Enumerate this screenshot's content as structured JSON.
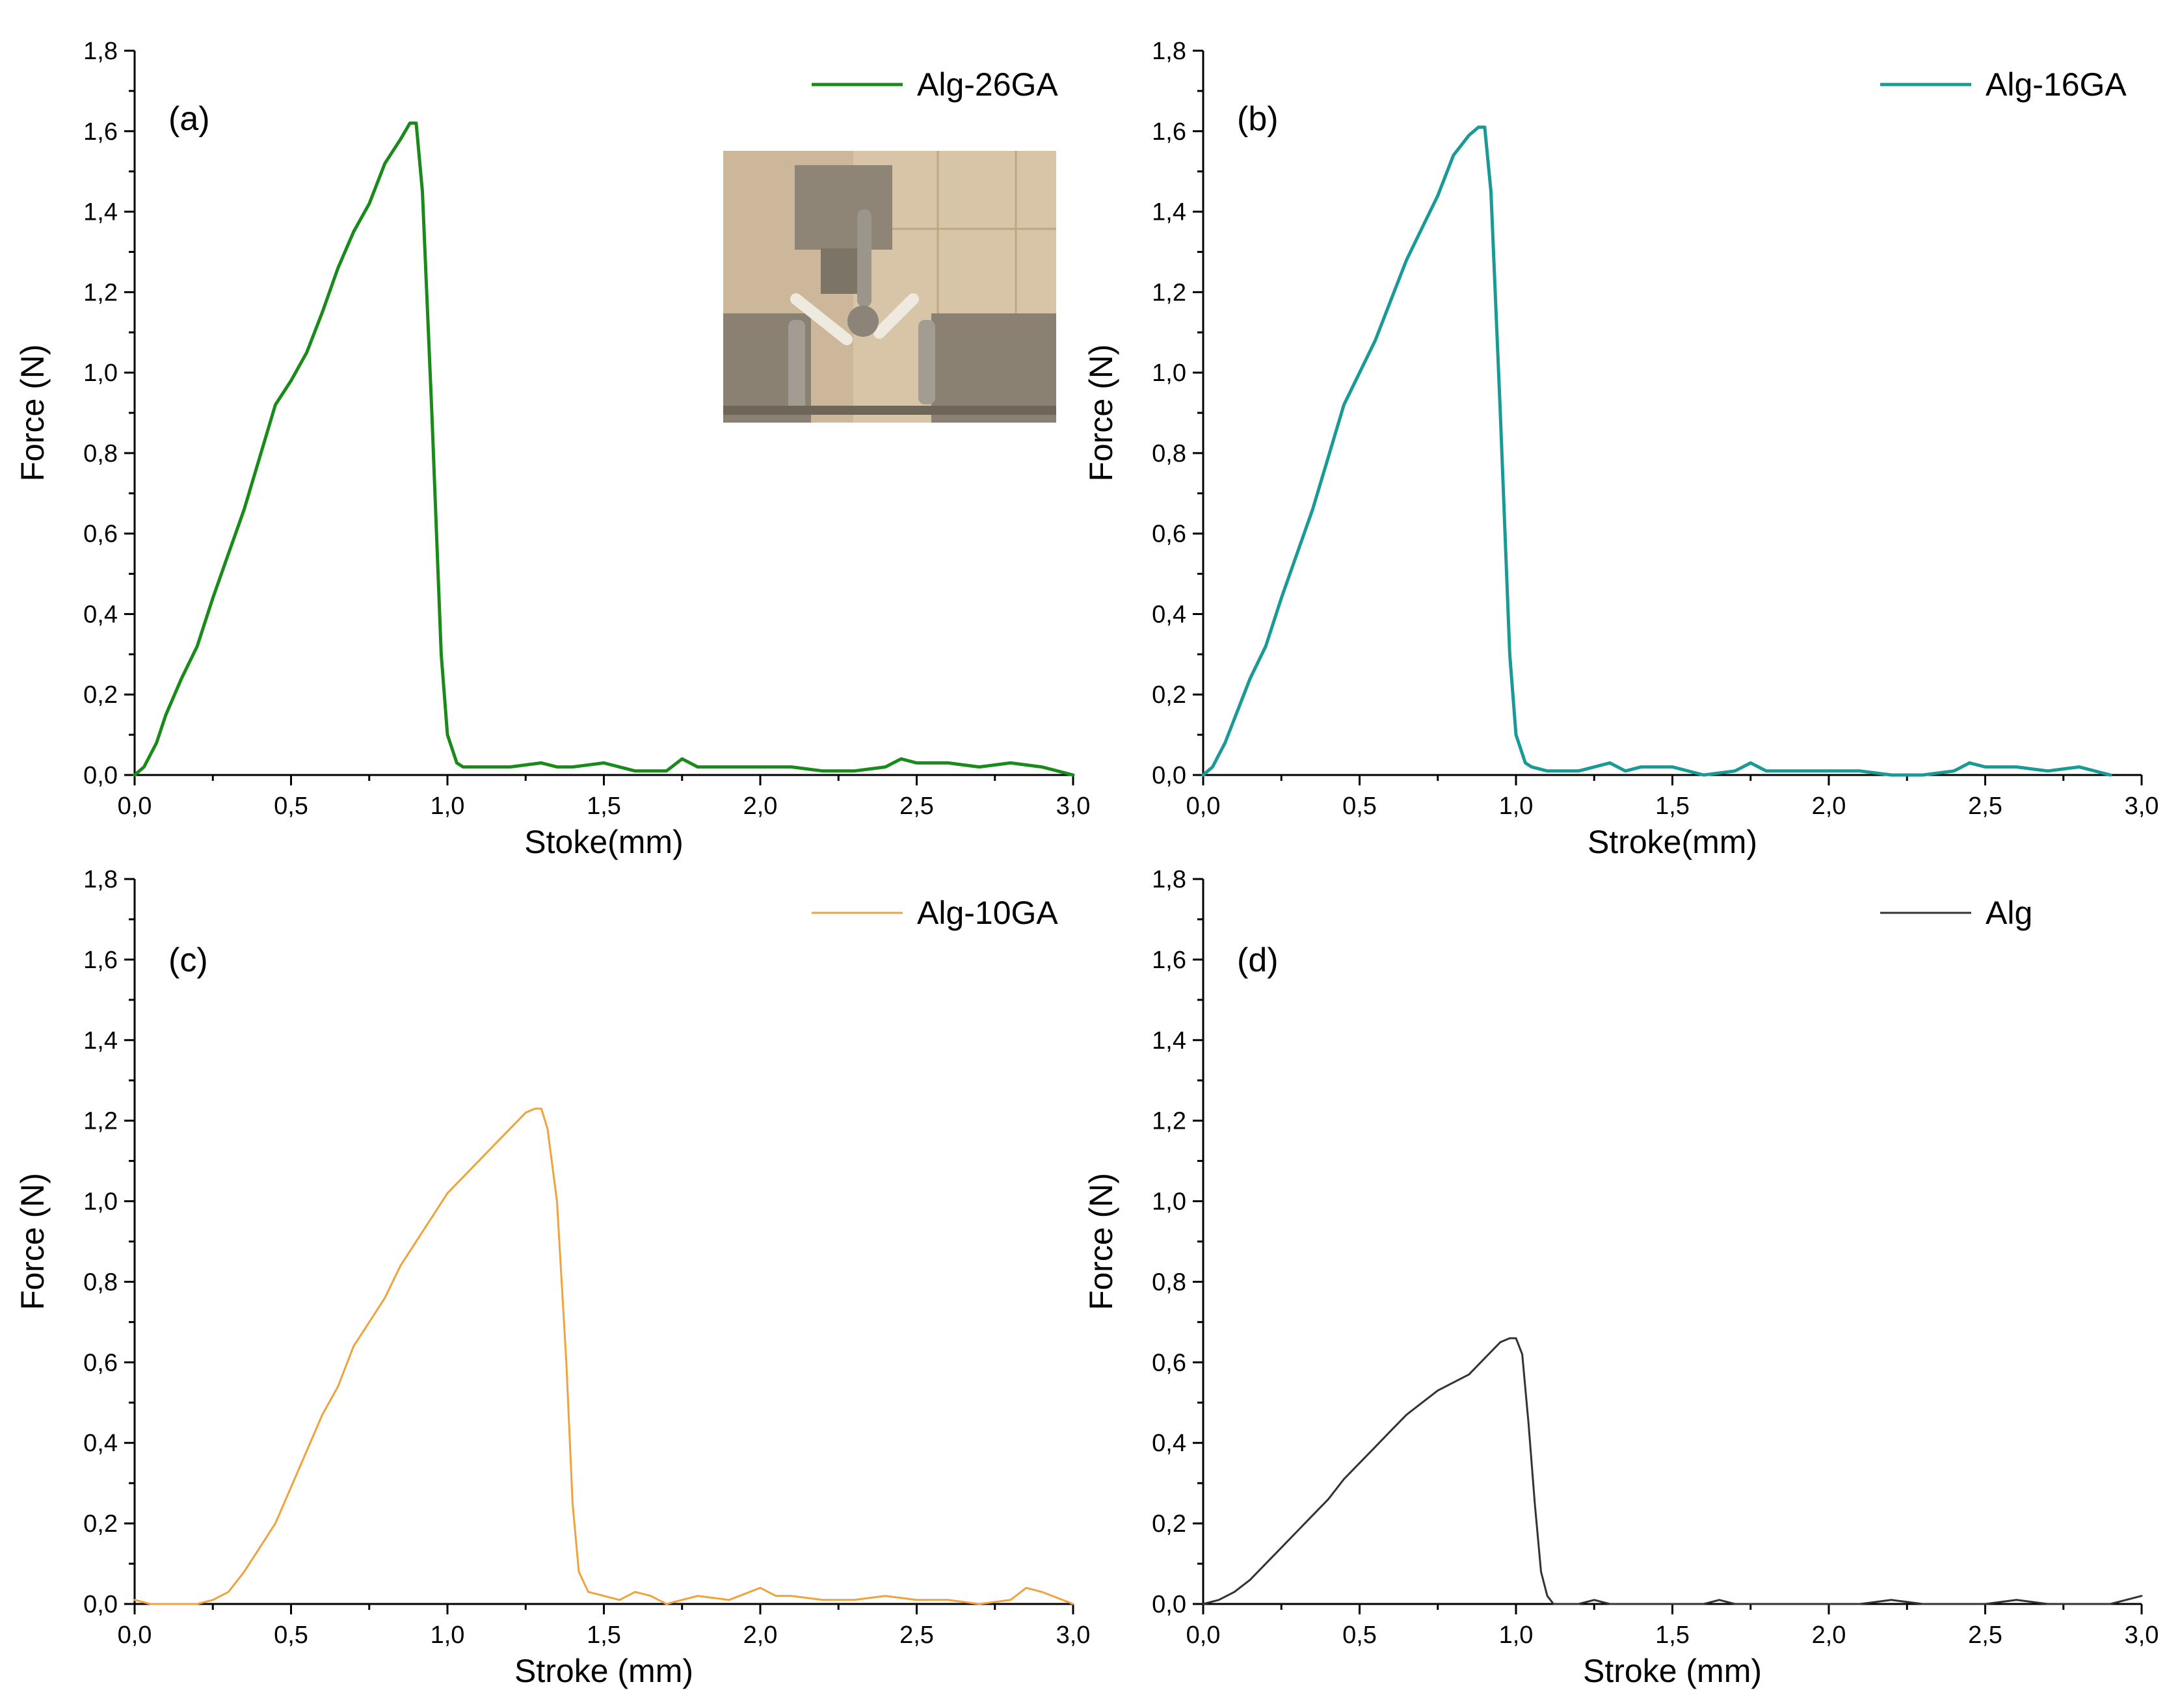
{
  "figure": {
    "panels": [
      {
        "letter": "(a)",
        "color": "#1a8a1a",
        "stroke_weight": "thick",
        "legend": "Alg-26GA",
        "xlabel": "Stoke(mm)",
        "ylabel": "Force (N)",
        "has_inset_photo": true,
        "inset_photo_icon": "tensile-test-grip-photo-icon"
      },
      {
        "letter": "(b)",
        "color": "#1a9a96",
        "stroke_weight": "thick",
        "legend": "Alg-16GA",
        "xlabel": "Stroke(mm)",
        "ylabel": "Force (N)",
        "has_inset_photo": false
      },
      {
        "letter": "(c)",
        "color": "#f0a23c",
        "stroke_weight": "thin",
        "legend": "Alg-10GA",
        "xlabel": "Stroke (mm)",
        "ylabel": "Force (N)",
        "has_inset_photo": false
      },
      {
        "letter": "(d)",
        "color": "#333333",
        "stroke_weight": "thin",
        "legend": "Alg",
        "xlabel": "Stroke (mm)",
        "ylabel": "Force (N)",
        "has_inset_photo": false
      }
    ]
  },
  "chart_data": [
    {
      "type": "line",
      "panel": "(a)",
      "xlabel": "Stoke(mm)",
      "ylabel": "Force (N)",
      "xlim": [
        0,
        3.0
      ],
      "ylim": [
        0,
        1.8
      ],
      "xticks": [
        "0,0",
        "0,5",
        "1,0",
        "1,5",
        "2,0",
        "2,5",
        "3,0"
      ],
      "yticks": [
        "0,0",
        "0,2",
        "0,4",
        "0,6",
        "0,8",
        "1,0",
        "1,2",
        "1,4",
        "1,6",
        "1,8"
      ],
      "grid": false,
      "legend_position": "top-right",
      "series": [
        {
          "name": "Alg-26GA",
          "x": [
            0,
            0.03,
            0.07,
            0.1,
            0.15,
            0.2,
            0.25,
            0.3,
            0.35,
            0.4,
            0.45,
            0.5,
            0.55,
            0.6,
            0.65,
            0.7,
            0.75,
            0.8,
            0.85,
            0.88,
            0.9,
            0.92,
            0.95,
            0.98,
            1.0,
            1.03,
            1.05,
            1.1,
            1.2,
            1.3,
            1.35,
            1.4,
            1.5,
            1.6,
            1.7,
            1.75,
            1.8,
            1.9,
            2.0,
            2.1,
            2.2,
            2.3,
            2.4,
            2.45,
            2.5,
            2.6,
            2.7,
            2.8,
            2.9,
            3.0
          ],
          "y": [
            0,
            0.02,
            0.08,
            0.15,
            0.24,
            0.32,
            0.44,
            0.55,
            0.66,
            0.79,
            0.92,
            0.98,
            1.05,
            1.15,
            1.26,
            1.35,
            1.42,
            1.52,
            1.58,
            1.62,
            1.62,
            1.45,
            0.9,
            0.3,
            0.1,
            0.03,
            0.02,
            0.02,
            0.02,
            0.03,
            0.02,
            0.02,
            0.03,
            0.01,
            0.01,
            0.04,
            0.02,
            0.02,
            0.02,
            0.02,
            0.01,
            0.01,
            0.02,
            0.04,
            0.03,
            0.03,
            0.02,
            0.03,
            0.02,
            0.0
          ]
        }
      ]
    },
    {
      "type": "line",
      "panel": "(b)",
      "xlabel": "Stroke(mm)",
      "ylabel": "Force (N)",
      "xlim": [
        0,
        3.0
      ],
      "ylim": [
        0,
        1.8
      ],
      "xticks": [
        "0,0",
        "0,5",
        "1,0",
        "1,5",
        "2,0",
        "2,5",
        "3,0"
      ],
      "yticks": [
        "0,0",
        "0,2",
        "0,4",
        "0,6",
        "0,8",
        "1,0",
        "1,2",
        "1,4",
        "1,6",
        "1,8"
      ],
      "grid": false,
      "legend_position": "top-right",
      "series": [
        {
          "name": "Alg-16GA",
          "x": [
            0,
            0.03,
            0.07,
            0.1,
            0.15,
            0.2,
            0.25,
            0.3,
            0.35,
            0.4,
            0.45,
            0.5,
            0.55,
            0.6,
            0.65,
            0.7,
            0.75,
            0.8,
            0.85,
            0.88,
            0.9,
            0.92,
            0.95,
            0.98,
            1.0,
            1.03,
            1.05,
            1.1,
            1.2,
            1.3,
            1.35,
            1.4,
            1.5,
            1.6,
            1.7,
            1.75,
            1.8,
            1.9,
            2.0,
            2.1,
            2.2,
            2.3,
            2.4,
            2.45,
            2.5,
            2.6,
            2.7,
            2.8,
            2.9
          ],
          "y": [
            0,
            0.02,
            0.08,
            0.14,
            0.24,
            0.32,
            0.44,
            0.55,
            0.66,
            0.79,
            0.92,
            1.0,
            1.08,
            1.18,
            1.28,
            1.36,
            1.44,
            1.54,
            1.59,
            1.61,
            1.61,
            1.45,
            0.9,
            0.3,
            0.1,
            0.03,
            0.02,
            0.01,
            0.01,
            0.03,
            0.01,
            0.02,
            0.02,
            0.0,
            0.01,
            0.03,
            0.01,
            0.01,
            0.01,
            0.01,
            0.0,
            0.0,
            0.01,
            0.03,
            0.02,
            0.02,
            0.01,
            0.02,
            0.0
          ]
        }
      ]
    },
    {
      "type": "line",
      "panel": "(c)",
      "xlabel": "Stroke (mm)",
      "ylabel": "Force (N)",
      "xlim": [
        0,
        3.0
      ],
      "ylim": [
        0,
        1.8
      ],
      "xticks": [
        "0,0",
        "0,5",
        "1,0",
        "1,5",
        "2,0",
        "2,5",
        "3,0"
      ],
      "yticks": [
        "0,0",
        "0,2",
        "0,4",
        "0,6",
        "0,8",
        "1,0",
        "1,2",
        "1,4",
        "1,6",
        "1,8"
      ],
      "grid": false,
      "legend_position": "top-right",
      "series": [
        {
          "name": "Alg-10GA",
          "x": [
            0,
            0.05,
            0.1,
            0.15,
            0.2,
            0.25,
            0.3,
            0.35,
            0.4,
            0.45,
            0.5,
            0.55,
            0.6,
            0.65,
            0.7,
            0.75,
            0.8,
            0.85,
            0.9,
            0.95,
            1.0,
            1.05,
            1.1,
            1.15,
            1.2,
            1.25,
            1.28,
            1.3,
            1.32,
            1.35,
            1.38,
            1.4,
            1.42,
            1.45,
            1.5,
            1.55,
            1.6,
            1.65,
            1.7,
            1.8,
            1.9,
            2.0,
            2.05,
            2.1,
            2.2,
            2.3,
            2.4,
            2.5,
            2.6,
            2.7,
            2.8,
            2.85,
            2.9,
            3.0
          ],
          "y": [
            0.01,
            0.0,
            0.0,
            0.0,
            0.0,
            0.01,
            0.03,
            0.08,
            0.14,
            0.2,
            0.29,
            0.38,
            0.47,
            0.54,
            0.64,
            0.7,
            0.76,
            0.84,
            0.9,
            0.96,
            1.02,
            1.06,
            1.1,
            1.14,
            1.18,
            1.22,
            1.23,
            1.23,
            1.18,
            1.0,
            0.6,
            0.25,
            0.08,
            0.03,
            0.02,
            0.01,
            0.03,
            0.02,
            0.0,
            0.02,
            0.01,
            0.04,
            0.02,
            0.02,
            0.01,
            0.01,
            0.02,
            0.01,
            0.01,
            0.0,
            0.01,
            0.04,
            0.03,
            0.0
          ]
        }
      ]
    },
    {
      "type": "line",
      "panel": "(d)",
      "xlabel": "Stroke (mm)",
      "ylabel": "Force (N)",
      "xlim": [
        0,
        3.0
      ],
      "ylim": [
        0,
        1.8
      ],
      "xticks": [
        "0,0",
        "0,5",
        "1,0",
        "1,5",
        "2,0",
        "2,5",
        "3,0"
      ],
      "yticks": [
        "0,0",
        "0,2",
        "0,4",
        "0,6",
        "0,8",
        "1,0",
        "1,2",
        "1,4",
        "1,6",
        "1,8"
      ],
      "grid": false,
      "legend_position": "top-right",
      "series": [
        {
          "name": "Alg",
          "x": [
            0,
            0.05,
            0.1,
            0.15,
            0.2,
            0.25,
            0.3,
            0.35,
            0.4,
            0.45,
            0.5,
            0.55,
            0.6,
            0.65,
            0.7,
            0.75,
            0.8,
            0.85,
            0.9,
            0.95,
            0.98,
            1.0,
            1.02,
            1.04,
            1.06,
            1.08,
            1.1,
            1.12,
            1.15,
            1.2,
            1.25,
            1.3,
            1.4,
            1.5,
            1.6,
            1.65,
            1.7,
            1.8,
            1.9,
            2.0,
            2.1,
            2.2,
            2.3,
            2.4,
            2.5,
            2.6,
            2.7,
            2.8,
            2.9,
            2.95,
            3.0
          ],
          "y": [
            0,
            0.01,
            0.03,
            0.06,
            0.1,
            0.14,
            0.18,
            0.22,
            0.26,
            0.31,
            0.35,
            0.39,
            0.43,
            0.47,
            0.5,
            0.53,
            0.55,
            0.57,
            0.61,
            0.65,
            0.66,
            0.66,
            0.62,
            0.45,
            0.25,
            0.08,
            0.02,
            0.0,
            0.0,
            0.0,
            0.01,
            0.0,
            0.0,
            0.0,
            0.0,
            0.01,
            0.0,
            0.0,
            0.0,
            0.0,
            0.0,
            0.01,
            0.0,
            0.0,
            0.0,
            0.01,
            0.0,
            0.0,
            0.0,
            0.01,
            0.02
          ]
        }
      ]
    }
  ]
}
